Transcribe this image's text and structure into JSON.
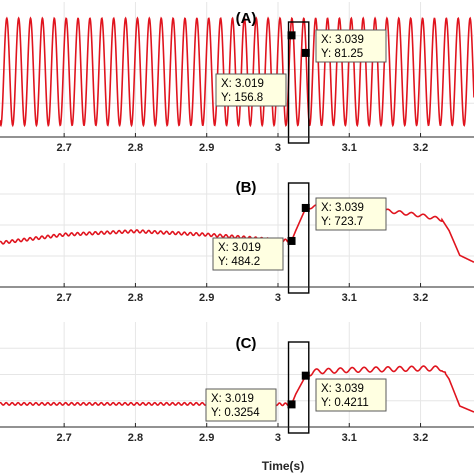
{
  "chart_data": [
    {
      "type": "line",
      "panel": "(A)",
      "xlim": [
        2.61,
        3.275
      ],
      "ylim": [
        -280,
        300
      ],
      "grid": true,
      "x_ticks": [
        "2.7",
        "2.8",
        "2.9",
        "3",
        "3.1",
        "3.2"
      ],
      "series": [
        {
          "signal": "sinusoid",
          "frequency_hz": 60,
          "amplitude": 230,
          "offset": 0,
          "start": 2.61,
          "end": 3.275
        }
      ],
      "highlight_window": [
        3.019,
        3.039
      ],
      "datatips": [
        {
          "x_label": "X: 3.019",
          "y_label": "Y: 156.8",
          "x": 3.019,
          "y": 156.8
        },
        {
          "x_label": "X: 3.039",
          "y_label": "Y: 81.25",
          "x": 3.039,
          "y": 81.25
        }
      ]
    },
    {
      "type": "line",
      "panel": "(B)",
      "xlim": [
        2.61,
        3.275
      ],
      "ylim": [
        150,
        1050
      ],
      "grid": true,
      "x_ticks": [
        "2.7",
        "2.8",
        "2.9",
        "3",
        "3.1",
        "3.2"
      ],
      "series": [
        {
          "points": [
            [
              2.61,
              470
            ],
            [
              2.7,
              530
            ],
            [
              2.8,
              555
            ],
            [
              2.9,
              530
            ],
            [
              3.0,
              490
            ],
            [
              3.019,
              484.2
            ],
            [
              3.025,
              560
            ],
            [
              3.039,
              723.7
            ],
            [
              3.05,
              735
            ],
            [
              3.1,
              725
            ],
            [
              3.15,
              705
            ],
            [
              3.2,
              670
            ],
            [
              3.23,
              640
            ],
            [
              3.24,
              560
            ],
            [
              3.255,
              380
            ],
            [
              3.275,
              330
            ]
          ],
          "ripple": [
            {
              "from": 2.61,
              "to": 3.015,
              "amp": 10,
              "freq": 120
            },
            {
              "from": 3.04,
              "to": 3.23,
              "amp": 12,
              "freq": 60
            }
          ]
        }
      ],
      "highlight_window": [
        3.019,
        3.039
      ],
      "datatips": [
        {
          "x_label": "X: 3.019",
          "y_label": "Y: 484.2",
          "x": 3.019,
          "y": 484.2
        },
        {
          "x_label": "X: 3.039",
          "y_label": "Y: 723.7",
          "x": 3.039,
          "y": 723.7
        }
      ]
    },
    {
      "type": "line",
      "panel": "(C)",
      "xlim": [
        2.61,
        3.275
      ],
      "ylim": [
        0.25,
        0.6
      ],
      "grid": true,
      "x_ticks": [
        "2.7",
        "2.8",
        "2.9",
        "3",
        "3.1",
        "3.2"
      ],
      "series": [
        {
          "points": [
            [
              2.61,
              0.327
            ],
            [
              2.9,
              0.327
            ],
            [
              3.0,
              0.326
            ],
            [
              3.019,
              0.3254
            ],
            [
              3.025,
              0.36
            ],
            [
              3.039,
              0.4211
            ],
            [
              3.05,
              0.435
            ],
            [
              3.1,
              0.44
            ],
            [
              3.2,
              0.445
            ],
            [
              3.23,
              0.445
            ],
            [
              3.24,
              0.41
            ],
            [
              3.255,
              0.32
            ],
            [
              3.275,
              0.3
            ]
          ],
          "ripple": [
            {
              "from": 2.61,
              "to": 3.015,
              "amp": 0.004,
              "freq": 120
            },
            {
              "from": 3.04,
              "to": 3.235,
              "amp": 0.008,
              "freq": 60
            }
          ]
        }
      ],
      "highlight_window": [
        3.019,
        3.039
      ],
      "datatips": [
        {
          "x_label": "X: 3.019",
          "y_label": "Y: 0.3254",
          "x": 3.019,
          "y": 0.3254
        },
        {
          "x_label": "X: 3.039",
          "y_label": "Y: 0.4211",
          "x": 3.039,
          "y": 0.4211
        }
      ]
    }
  ],
  "xlabel": "Time(s)",
  "colors": {
    "line": "#e0141e",
    "grid": "#e6e6e6",
    "axis": "#262626",
    "tip_bg": "#ffffe1",
    "tip_border": "#5a5a5a",
    "box": "#000000"
  }
}
